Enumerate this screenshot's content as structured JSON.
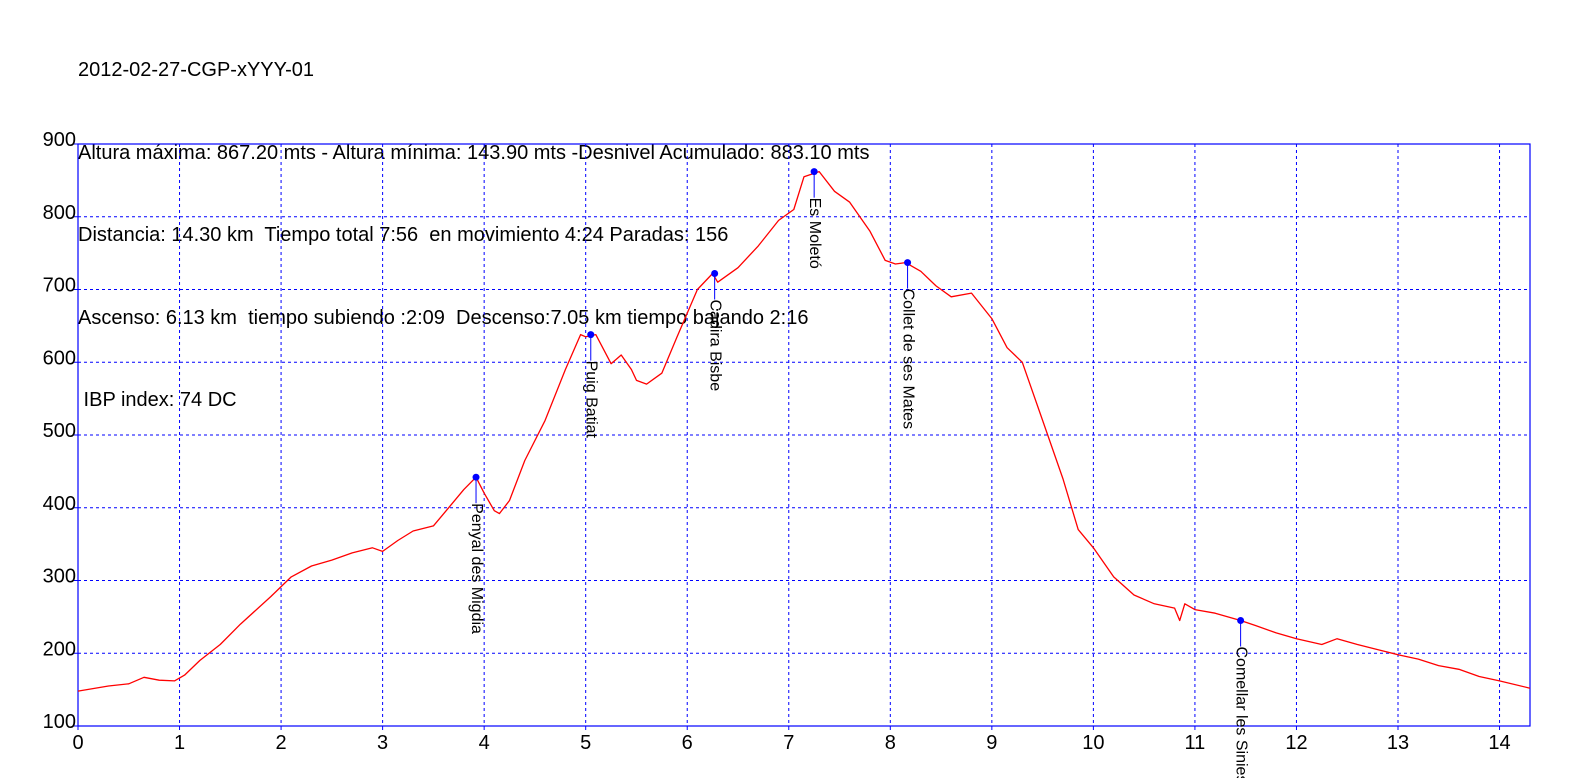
{
  "header": {
    "lines": [
      "2012-02-27-CGP-xYYY-01",
      "Altura máxima: 867.20 mts - Altura mínima: 143.90 mts -Desnivel Acumulado: 883.10 mts",
      "Distancia: 14.30 km  Tiempo total 7:56  en movimiento 4:24 Paradas: 156",
      "Ascenso: 6.13 km  tiempo subiendo :2:09  Descenso:7.05 km tiempo bajando 2:16"
    ],
    "ibp": " IBP index: 74 DC"
  },
  "colors": {
    "profile": "#ff0000",
    "axes": "#0000ff",
    "grid": "#0000ff",
    "waypoint": "#0000ff",
    "text": "#000000"
  },
  "chart_data": {
    "type": "line",
    "title": "2012-02-27-CGP-xYYY-01",
    "xlabel": "",
    "ylabel": "",
    "xlim": [
      0,
      14.3
    ],
    "ylim": [
      100,
      900
    ],
    "x_ticks": [
      0,
      1,
      2,
      3,
      4,
      5,
      6,
      7,
      8,
      9,
      10,
      11,
      12,
      13,
      14
    ],
    "y_ticks": [
      100,
      200,
      300,
      400,
      500,
      600,
      700,
      800,
      900
    ],
    "grid": true,
    "legend": "none",
    "series": [
      {
        "x": [
          0,
          0.3,
          0.5,
          0.65,
          0.8,
          0.95,
          1.05,
          1.2,
          1.4,
          1.6,
          1.9,
          2.1,
          2.3,
          2.5,
          2.7,
          2.9,
          3.0,
          3.15,
          3.3,
          3.5,
          3.65,
          3.8,
          3.92,
          4.0,
          4.1,
          4.15,
          4.25,
          4.4,
          4.6,
          4.8,
          4.95,
          5.0,
          5.1,
          5.25,
          5.35,
          5.45,
          5.5,
          5.6,
          5.75,
          5.9,
          6.1,
          6.25,
          6.3,
          6.5,
          6.7,
          6.9,
          7.05,
          7.15,
          7.3,
          7.45,
          7.6,
          7.8,
          7.95,
          8.05,
          8.15,
          8.3,
          8.45,
          8.6,
          8.8,
          9.0,
          9.15,
          9.3,
          9.5,
          9.7,
          9.85,
          10.0,
          10.2,
          10.4,
          10.6,
          10.8,
          10.85,
          10.9,
          11.0,
          11.2,
          11.45,
          11.6,
          11.8,
          12.0,
          12.25,
          12.4,
          12.6,
          12.8,
          13.0,
          13.2,
          13.4,
          13.6,
          13.8,
          14.0,
          14.3
        ],
        "values": [
          148,
          155,
          158,
          167,
          163,
          162,
          170,
          190,
          212,
          240,
          278,
          305,
          320,
          328,
          338,
          345,
          340,
          355,
          368,
          375,
          400,
          425,
          442,
          420,
          396,
          392,
          410,
          465,
          520,
          590,
          638,
          635,
          638,
          598,
          610,
          590,
          575,
          570,
          585,
          635,
          700,
          722,
          710,
          730,
          760,
          795,
          810,
          855,
          862,
          835,
          820,
          780,
          740,
          735,
          737,
          725,
          705,
          690,
          695,
          660,
          620,
          600,
          520,
          440,
          370,
          345,
          305,
          280,
          268,
          262,
          245,
          268,
          260,
          255,
          245,
          238,
          228,
          220,
          212,
          220,
          212,
          205,
          198,
          192,
          183,
          178,
          168,
          162,
          152
        ]
      }
    ],
    "waypoints": [
      {
        "name": "Penyal des Migdia",
        "x": 3.92,
        "y": 442
      },
      {
        "name": "Puig Batiat",
        "x": 5.05,
        "y": 638
      },
      {
        "name": "Cadira Bisbe",
        "x": 6.27,
        "y": 722
      },
      {
        "name": "Es Moletó",
        "x": 7.25,
        "y": 862
      },
      {
        "name": "Collet de ses Mates",
        "x": 8.17,
        "y": 737
      },
      {
        "name": "Comellar les Sinies",
        "x": 11.45,
        "y": 245
      }
    ]
  }
}
